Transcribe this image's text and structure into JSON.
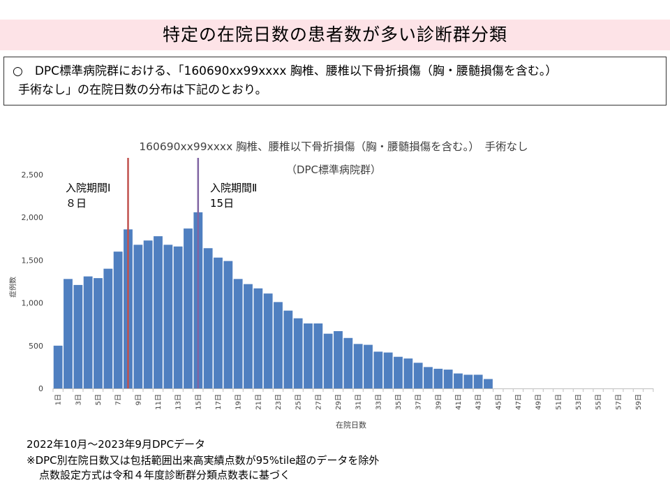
{
  "page_title": "特定の在院日数の患者数が多い診断群分類",
  "note": {
    "line1": "○　DPC標準病院群における、「160690xx99xxxx 胸椎、腰椎以下骨折損傷（胸・腰髄損傷を含む。）",
    "line2": "手術なし」の在院日数の分布は下記のとおり。"
  },
  "chart_data": {
    "type": "bar",
    "title": "160690xx99xxxx 胸椎、腰椎以下骨折損傷（胸・腰髄損傷を含む。）　手術なし",
    "subtitle": "（DPC標準病院群）",
    "xlabel": "在院日数",
    "ylabel": "症例数",
    "ylim": [
      0,
      2500
    ],
    "yticks": [
      0,
      500,
      1000,
      1500,
      2000,
      2500
    ],
    "ytick_labels": [
      "0",
      "500",
      "1,000",
      "1,500",
      "2,000",
      "2,500"
    ],
    "x_days": [
      1,
      2,
      3,
      4,
      5,
      6,
      7,
      8,
      9,
      10,
      11,
      12,
      13,
      14,
      15,
      16,
      17,
      18,
      19,
      20,
      21,
      22,
      23,
      24,
      25,
      26,
      27,
      28,
      29,
      30,
      31,
      32,
      33,
      34,
      35,
      36,
      37,
      38,
      39,
      40,
      41,
      42,
      43,
      44,
      45,
      46,
      47,
      48,
      49,
      50,
      51,
      52,
      53,
      54,
      55,
      56,
      57,
      58,
      59,
      60
    ],
    "x_tick_labels": [
      "1日",
      "3日",
      "5日",
      "7日",
      "9日",
      "11日",
      "13日",
      "15日",
      "17日",
      "19日",
      "21日",
      "23日",
      "25日",
      "27日",
      "29日",
      "31日",
      "33日",
      "35日",
      "37日",
      "39日",
      "41日",
      "43日",
      "45日",
      "47日",
      "49日",
      "51日",
      "53日",
      "55日",
      "57日",
      "59日"
    ],
    "values": [
      500,
      1280,
      1210,
      1310,
      1290,
      1400,
      1600,
      1860,
      1680,
      1730,
      1780,
      1680,
      1660,
      1870,
      2060,
      1640,
      1530,
      1490,
      1280,
      1220,
      1170,
      1110,
      1010,
      910,
      820,
      760,
      760,
      640,
      670,
      590,
      520,
      510,
      430,
      420,
      370,
      350,
      300,
      250,
      230,
      220,
      175,
      160,
      160,
      110,
      0,
      0,
      0,
      0,
      0,
      0,
      0,
      0,
      0,
      0,
      0,
      0,
      0,
      0,
      0,
      0
    ],
    "bar_color": "#4f7fc0",
    "grid": false,
    "markers": [
      {
        "label": "入院期間Ⅰ",
        "value_label": "８日",
        "day": 8,
        "color": "#c0504d"
      },
      {
        "label": "入院期間Ⅱ",
        "value_label": "15日",
        "day": 15,
        "color": "#8064a2"
      }
    ]
  },
  "footer": {
    "line1": "2022年10月～2023年9月DPCデータ",
    "line2": "※DPC別在院日数又は包括範囲出来高実績点数が95%tile超のデータを除外",
    "line3": "点数設定方式は令和４年度診断群分類点数表に基づく"
  }
}
